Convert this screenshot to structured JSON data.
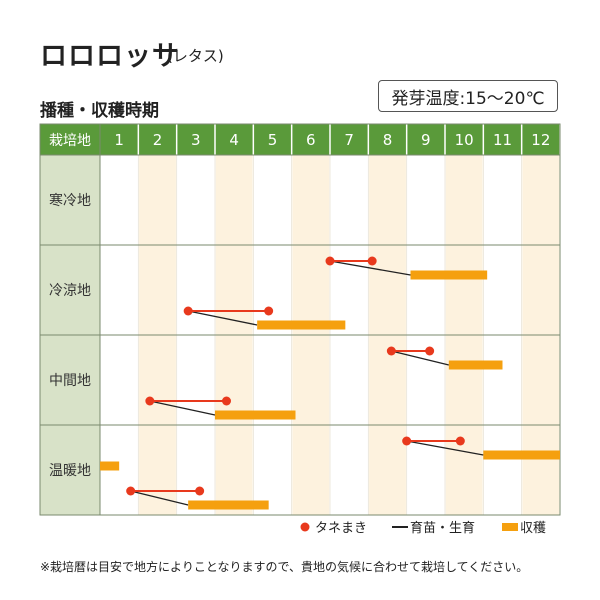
{
  "header": {
    "title": "ロロロッサ",
    "subtitle": "(レタス)",
    "temp_label": "発芽温度:15〜20℃",
    "section_label": "播種・収穫時期"
  },
  "colors": {
    "header_green": "#5a9a3a",
    "label_bg": "#d8e2c8",
    "stripe": "#fdf2de",
    "sowing": "#e8391d",
    "growth": "#222222",
    "harvest": "#f5a00f",
    "grid": "#7a8a6e"
  },
  "chart_data": {
    "type": "gantt",
    "corner_label": "栽培地",
    "months": [
      "1",
      "2",
      "3",
      "4",
      "5",
      "6",
      "7",
      "8",
      "9",
      "10",
      "11",
      "12"
    ],
    "regions": [
      {
        "name": "寒冷地",
        "rows": []
      },
      {
        "name": "冷涼地",
        "rows": [
          {
            "sow": [
              7.0,
              8.1
            ],
            "harvest": [
              9.1,
              11.1
            ]
          },
          {
            "sow": [
              3.3,
              5.4
            ],
            "harvest": [
              5.1,
              7.4
            ]
          }
        ]
      },
      {
        "name": "中間地",
        "rows": [
          {
            "sow": [
              8.6,
              9.6
            ],
            "harvest": [
              10.1,
              11.5
            ]
          },
          {
            "sow": [
              2.3,
              4.3
            ],
            "harvest": [
              4.0,
              6.1
            ]
          }
        ]
      },
      {
        "name": "温暖地",
        "rows": [
          {
            "sow": [
              9.0,
              10.4
            ],
            "harvest": [
              11.0,
              13.0
            ]
          },
          {
            "harvest": [
              1.0,
              1.5
            ]
          },
          {
            "sow": [
              1.8,
              3.6
            ],
            "harvest": [
              3.3,
              5.4
            ]
          }
        ]
      }
    ],
    "legend": [
      {
        "key": "sowing",
        "label": "タネまき"
      },
      {
        "key": "growth",
        "label": "育苗・生育"
      },
      {
        "key": "harvest",
        "label": "収穫"
      }
    ]
  },
  "footnote": "※栽培暦は目安で地方によりことなりますので、貴地の気候に合わせて栽培してください。"
}
